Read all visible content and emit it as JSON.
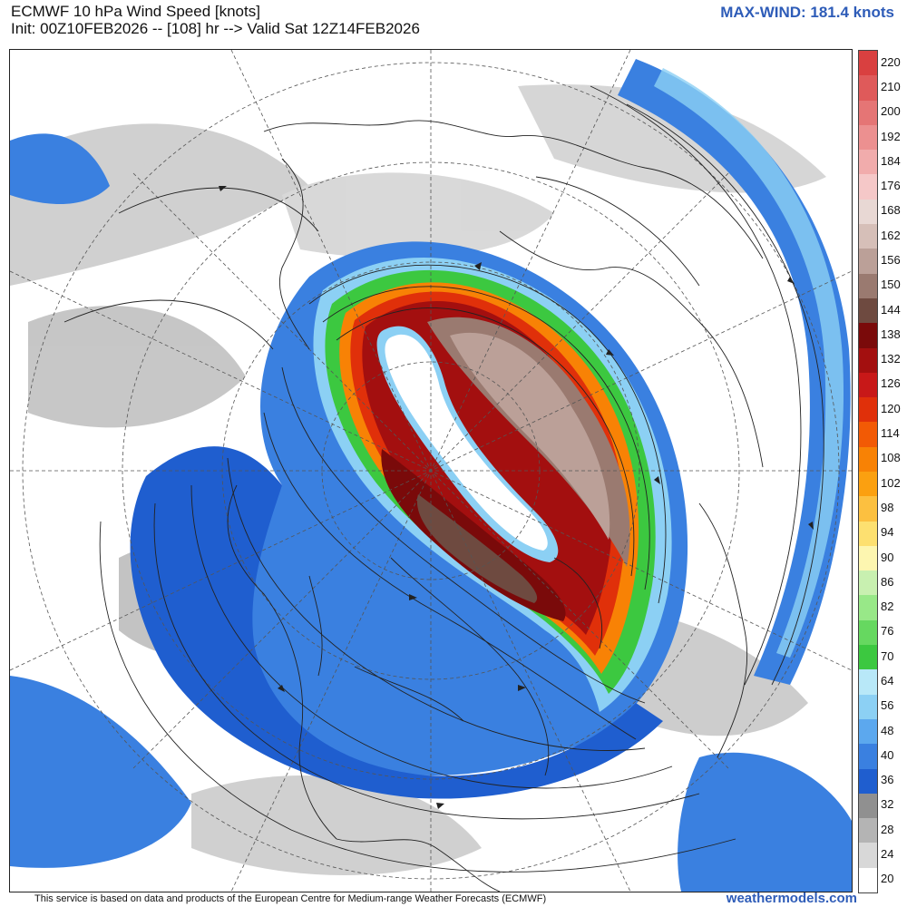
{
  "header": {
    "title": "ECMWF 10 hPa Wind Speed [knots]",
    "init": "Init: 00Z10FEB2026 -- [108] hr --> Valid Sat 12Z14FEB2026",
    "max_wind": "MAX-WIND: 181.4 knots"
  },
  "footer": {
    "note": "This service is based on data and products of the European Centre for Medium-range Weather Forecasts (ECMWF)",
    "site": "weathermodels.com"
  },
  "colorbar": {
    "levels": [
      {
        "label": "220",
        "color": "#d94040"
      },
      {
        "label": "210",
        "color": "#df5a5a"
      },
      {
        "label": "200",
        "color": "#e57575"
      },
      {
        "label": "192",
        "color": "#ec9090"
      },
      {
        "label": "184",
        "color": "#f1acac"
      },
      {
        "label": "176",
        "color": "#f5c8c8"
      },
      {
        "label": "168",
        "color": "#e8d8d4"
      },
      {
        "label": "162",
        "color": "#d6bfb8"
      },
      {
        "label": "156",
        "color": "#bba098"
      },
      {
        "label": "150",
        "color": "#9a7a70"
      },
      {
        "label": "144",
        "color": "#6e4a40"
      },
      {
        "label": "138",
        "color": "#7a0a0a"
      },
      {
        "label": "132",
        "color": "#a30f0f"
      },
      {
        "label": "126",
        "color": "#c81818"
      },
      {
        "label": "120",
        "color": "#e0300a"
      },
      {
        "label": "114",
        "color": "#f25a05"
      },
      {
        "label": "108",
        "color": "#f88205"
      },
      {
        "label": "102",
        "color": "#fba010"
      },
      {
        "label": "98",
        "color": "#fcc040"
      },
      {
        "label": "94",
        "color": "#fde070"
      },
      {
        "label": "90",
        "color": "#fdf6b0"
      },
      {
        "label": "86",
        "color": "#c8f0b0"
      },
      {
        "label": "82",
        "color": "#98e888"
      },
      {
        "label": "76",
        "color": "#66d860"
      },
      {
        "label": "70",
        "color": "#3cc840"
      },
      {
        "label": "64",
        "color": "#b8e8f8"
      },
      {
        "label": "56",
        "color": "#8cd0f4"
      },
      {
        "label": "48",
        "color": "#5ca8ee"
      },
      {
        "label": "40",
        "color": "#3a80e0"
      },
      {
        "label": "36",
        "color": "#1f5ecf"
      },
      {
        "label": "32",
        "color": "#909090"
      },
      {
        "label": "28",
        "color": "#b4b4b4"
      },
      {
        "label": "24",
        "color": "#d8d8d8"
      },
      {
        "label": "20",
        "color": "#ffffff"
      }
    ]
  }
}
